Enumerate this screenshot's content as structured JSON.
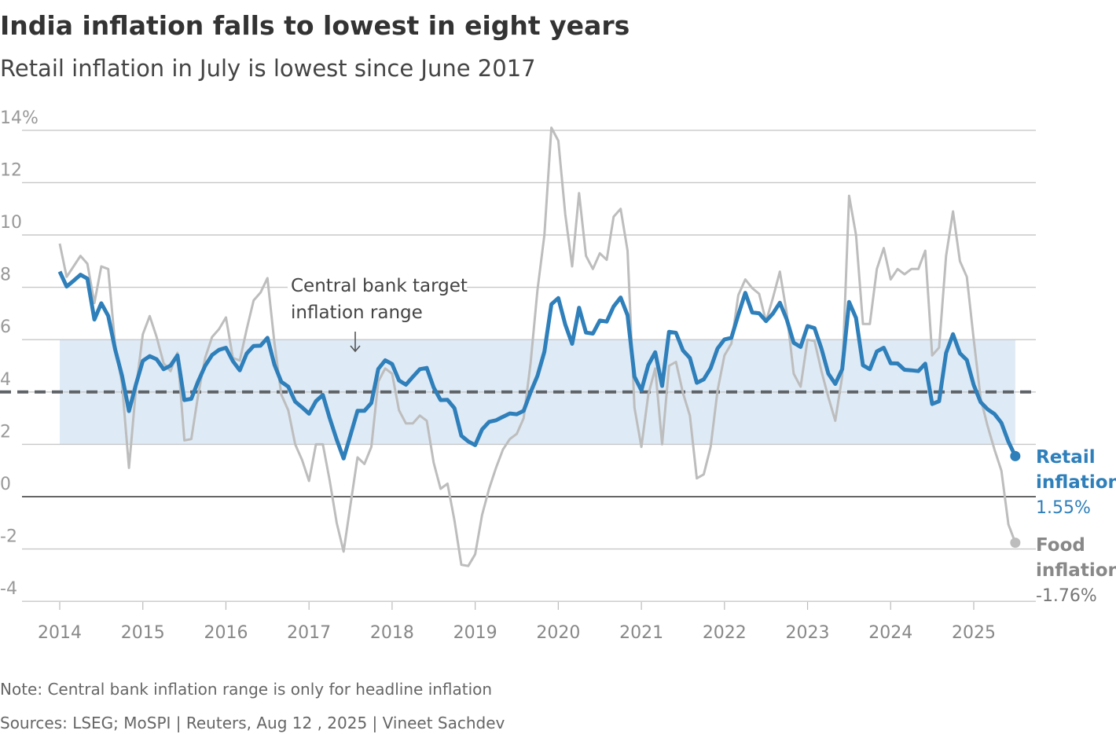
{
  "header": {
    "title": "India inflation falls to lowest in eight years",
    "subtitle": "Retail inflation in July is lowest since June 2017"
  },
  "footer": {
    "note": "Note: Central bank inflation range is only for headline inflation",
    "sources": "Sources: LSEG; MoSPI | Reuters, Aug 12 , 2025 | Vineet Sachdev"
  },
  "colors": {
    "retail": "#2e7fba",
    "food": "#bdbdbd",
    "target_band": "#deeaf5",
    "target_line": "#5f6368"
  },
  "chart_data": {
    "type": "line",
    "title": "India inflation falls to lowest in eight years",
    "subtitle": "Retail inflation in July is lowest since June 2017",
    "x_start": "2014-01",
    "x_end": "2025-07",
    "x_frequency": "monthly",
    "x_tick_labels": [
      "2014",
      "2015",
      "2016",
      "2017",
      "2018",
      "2019",
      "2020",
      "2021",
      "2022",
      "2023",
      "2024",
      "2025"
    ],
    "y_tick_labels": [
      "14%",
      "12",
      "10",
      "8",
      "6",
      "4",
      "2",
      "0",
      "-2",
      "-4"
    ],
    "ylim": [
      -4,
      14
    ],
    "grid": true,
    "annotation": {
      "text_line1": "Central bank target",
      "text_line2": "inflation range",
      "range": [
        2,
        6
      ],
      "target": 4
    },
    "series": [
      {
        "name": "Retail inflation",
        "label_line1": "Retail",
        "label_line2": "inflation",
        "last_value_label": "1.55%",
        "values": [
          8.6,
          8.03,
          8.25,
          8.48,
          8.33,
          6.77,
          7.39,
          6.91,
          5.63,
          4.62,
          3.27,
          4.28,
          5.19,
          5.37,
          5.25,
          4.87,
          5.01,
          5.4,
          3.69,
          3.74,
          4.41,
          5.0,
          5.41,
          5.61,
          5.69,
          5.18,
          4.83,
          5.47,
          5.76,
          5.77,
          6.07,
          5.05,
          4.39,
          4.2,
          3.63,
          3.41,
          3.17,
          3.65,
          3.89,
          2.99,
          2.18,
          1.46,
          2.36,
          3.28,
          3.28,
          3.58,
          4.88,
          5.21,
          5.07,
          4.44,
          4.28,
          4.58,
          4.87,
          4.92,
          4.17,
          3.69,
          3.7,
          3.38,
          2.33,
          2.11,
          1.97,
          2.57,
          2.86,
          2.92,
          3.05,
          3.18,
          3.15,
          3.28,
          3.99,
          4.62,
          5.54,
          7.35,
          7.59,
          6.58,
          5.84,
          7.22,
          6.27,
          6.23,
          6.73,
          6.69,
          7.27,
          7.61,
          6.93,
          4.59,
          4.06,
          5.03,
          5.52,
          4.23,
          6.3,
          6.26,
          5.59,
          5.3,
          4.35,
          4.48,
          4.91,
          5.66,
          6.01,
          6.07,
          6.95,
          7.79,
          7.04,
          7.01,
          6.71,
          7.0,
          7.41,
          6.77,
          5.88,
          5.72,
          6.52,
          6.44,
          5.66,
          4.7,
          4.31,
          4.87,
          7.44,
          6.83,
          5.02,
          4.87,
          5.55,
          5.69,
          5.1,
          5.09,
          4.85,
          4.83,
          4.8,
          5.08,
          3.54,
          3.65,
          5.49,
          6.21,
          5.48,
          5.22,
          4.26,
          3.61,
          3.34,
          3.16,
          2.82,
          2.1,
          1.55
        ]
      },
      {
        "name": "Food inflation",
        "label_line1": "Food",
        "label_line2": "inflation",
        "last_value_label": "-1.76%",
        "values": [
          9.67,
          8.4,
          8.8,
          9.2,
          8.9,
          7.4,
          8.8,
          8.7,
          5.8,
          4.3,
          1.1,
          4.1,
          6.2,
          6.9,
          6.1,
          5.1,
          4.8,
          5.5,
          2.15,
          2.2,
          3.9,
          5.3,
          6.1,
          6.4,
          6.85,
          5.3,
          5.2,
          6.4,
          7.5,
          7.8,
          8.35,
          5.9,
          3.9,
          3.3,
          2.0,
          1.4,
          0.6,
          2.0,
          2.0,
          0.6,
          -1.0,
          -2.1,
          -0.3,
          1.5,
          1.25,
          1.9,
          4.4,
          4.9,
          4.7,
          3.3,
          2.8,
          2.8,
          3.1,
          2.9,
          1.3,
          0.3,
          0.5,
          -0.9,
          -2.6,
          -2.65,
          -2.2,
          -0.7,
          0.3,
          1.1,
          1.8,
          2.2,
          2.4,
          3.0,
          5.1,
          7.9,
          10.0,
          14.1,
          13.6,
          10.8,
          8.8,
          11.6,
          9.2,
          8.7,
          9.3,
          9.05,
          10.7,
          11.0,
          9.4,
          3.4,
          1.9,
          3.9,
          4.9,
          2.0,
          5.0,
          5.15,
          3.96,
          3.1,
          0.7,
          0.85,
          1.9,
          4.05,
          5.4,
          5.85,
          7.7,
          8.3,
          7.97,
          7.75,
          6.7,
          7.6,
          8.6,
          7.0,
          4.7,
          4.2,
          6.0,
          5.95,
          4.8,
          3.8,
          2.9,
          4.6,
          11.5,
          10.0,
          6.6,
          6.6,
          8.7,
          9.5,
          8.3,
          8.7,
          8.5,
          8.7,
          8.7,
          9.4,
          5.4,
          5.7,
          9.2,
          10.9,
          9.0,
          8.4,
          6.0,
          3.75,
          2.7,
          1.8,
          0.99,
          -1.06,
          -1.76
        ]
      }
    ]
  }
}
